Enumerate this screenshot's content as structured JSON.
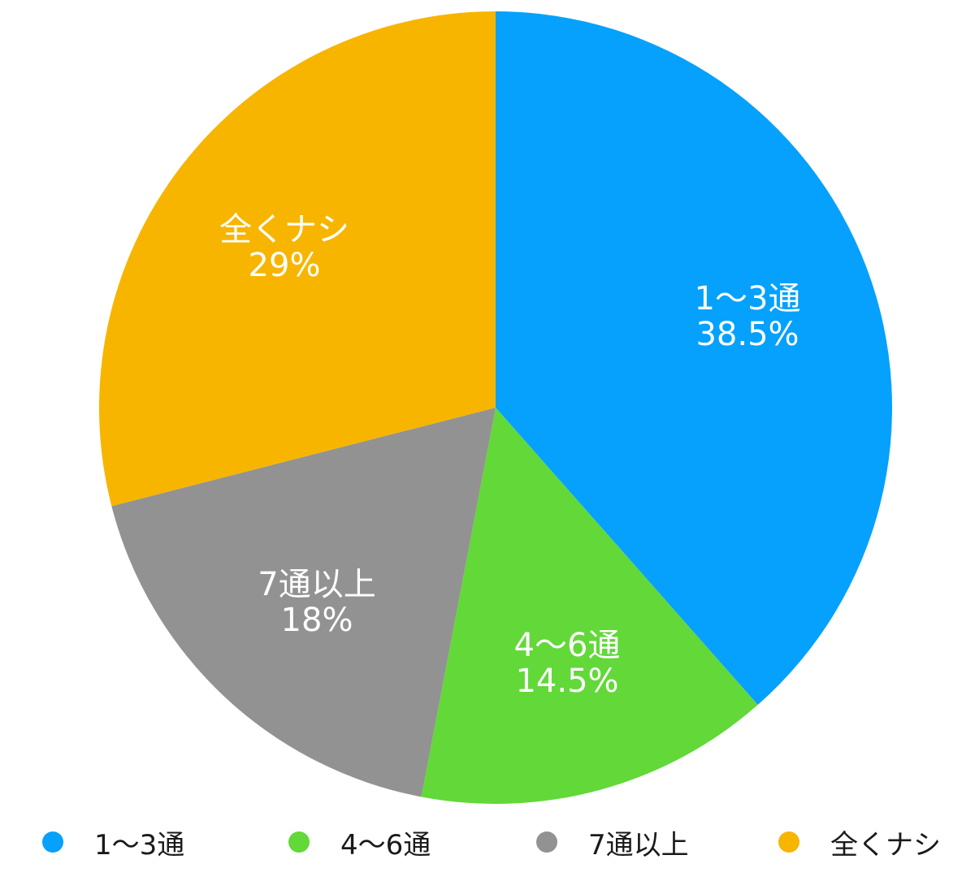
{
  "chart_data": {
    "type": "pie",
    "categories": [
      "1～3通",
      "4～6通",
      "7通以上",
      "全くナシ"
    ],
    "values": [
      38.5,
      14.5,
      18,
      29
    ],
    "value_labels": [
      "38.5%",
      "14.5%",
      "18%",
      "29%"
    ],
    "colors": [
      "#05a1fc",
      "#62d839",
      "#929292",
      "#f7b500"
    ],
    "start": "12 o'clock",
    "direction": "clockwise",
    "legend_position": "bottom"
  }
}
